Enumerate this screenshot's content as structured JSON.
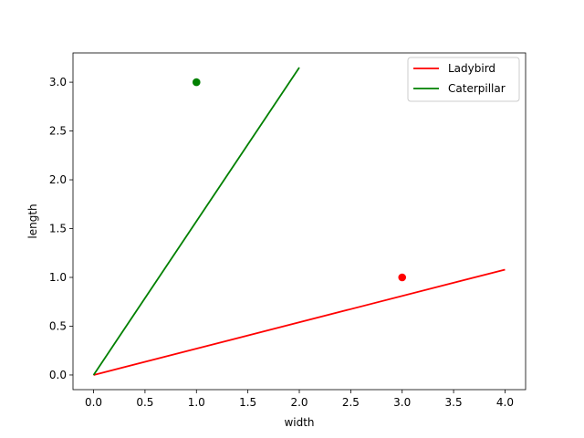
{
  "chart_data": {
    "type": "line",
    "xlabel": "width",
    "ylabel": "length",
    "xlim": [
      -0.2,
      4.2
    ],
    "ylim": [
      -0.15,
      3.3
    ],
    "xticks": [
      0.0,
      0.5,
      1.0,
      1.5,
      2.0,
      2.5,
      3.0,
      3.5,
      4.0
    ],
    "yticks": [
      0.0,
      0.5,
      1.0,
      1.5,
      2.0,
      2.5,
      3.0
    ],
    "xtick_labels": [
      "0.0",
      "0.5",
      "1.0",
      "1.5",
      "2.0",
      "2.5",
      "3.0",
      "3.5",
      "4.0"
    ],
    "ytick_labels": [
      "0.0",
      "0.5",
      "1.0",
      "1.5",
      "2.0",
      "2.5",
      "3.0"
    ],
    "grid": false,
    "legend_position": "top-right",
    "series": [
      {
        "name": "Ladybird",
        "color": "#ff0000",
        "x": [
          0.0,
          4.0
        ],
        "y": [
          0.0,
          1.08
        ]
      },
      {
        "name": "Caterpillar",
        "color": "#008000",
        "x": [
          0.0,
          2.0
        ],
        "y": [
          0.0,
          3.15
        ]
      }
    ],
    "points": [
      {
        "x": 3.0,
        "y": 1.0,
        "color": "#ff0000"
      },
      {
        "x": 1.0,
        "y": 3.0,
        "color": "#008000"
      }
    ]
  }
}
